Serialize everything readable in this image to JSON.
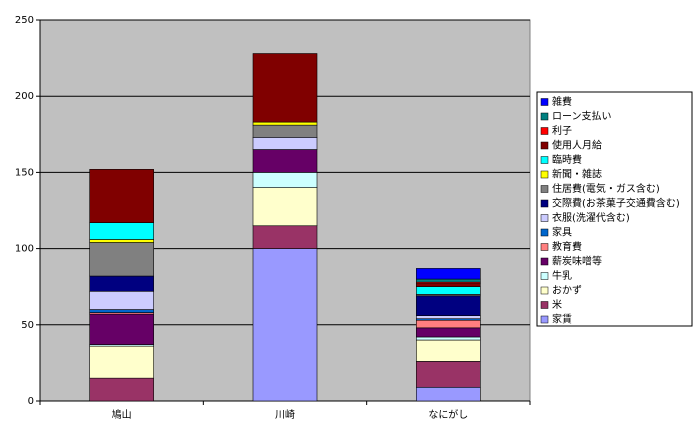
{
  "chart_data": {
    "type": "stacked_bar",
    "categories": [
      "鳩山",
      "川崎",
      "なにがし"
    ],
    "series": [
      {
        "name": "家賃",
        "color": "#9999ff",
        "values": [
          0,
          100,
          9
        ]
      },
      {
        "name": "米",
        "color": "#993366",
        "values": [
          15,
          15,
          17
        ]
      },
      {
        "name": "おかず",
        "color": "#ffffcc",
        "values": [
          21,
          25,
          14
        ]
      },
      {
        "name": "牛乳",
        "color": "#ccffff",
        "values": [
          1,
          10,
          2
        ]
      },
      {
        "name": "薪炭味噌等",
        "color": "#660066",
        "values": [
          20,
          15,
          6
        ]
      },
      {
        "name": "教育費",
        "color": "#ff8080",
        "values": [
          1,
          0,
          5
        ]
      },
      {
        "name": "家具",
        "color": "#0066cc",
        "values": [
          2,
          0,
          1
        ]
      },
      {
        "name": "衣服(洗濯代含む)",
        "color": "#ccccff",
        "values": [
          12,
          8,
          2
        ]
      },
      {
        "name": "交際費(お茶菓子交通費含む)",
        "color": "#000080",
        "values": [
          10,
          0,
          13
        ]
      },
      {
        "name": "住居費(電気・ガス含む)",
        "color": "#808080",
        "values": [
          22,
          8,
          1
        ]
      },
      {
        "name": "新聞・雑誌",
        "color": "#ffff00",
        "values": [
          2,
          2,
          0
        ]
      },
      {
        "name": "臨時費",
        "color": "#00ffff",
        "values": [
          11,
          0,
          5
        ]
      },
      {
        "name": "使用人月給",
        "color": "#800000",
        "values": [
          35,
          45,
          2
        ]
      },
      {
        "name": "利子",
        "color": "#ff0000",
        "values": [
          0,
          0,
          1
        ]
      },
      {
        "name": "ローン支払い",
        "color": "#008080",
        "values": [
          0,
          0,
          2
        ]
      },
      {
        "name": "雑費",
        "color": "#0000ff",
        "values": [
          0,
          0,
          7
        ]
      }
    ],
    "ylim": [
      0,
      250
    ],
    "yticks": [
      0,
      50,
      100,
      150,
      200,
      250
    ],
    "grid": true
  }
}
